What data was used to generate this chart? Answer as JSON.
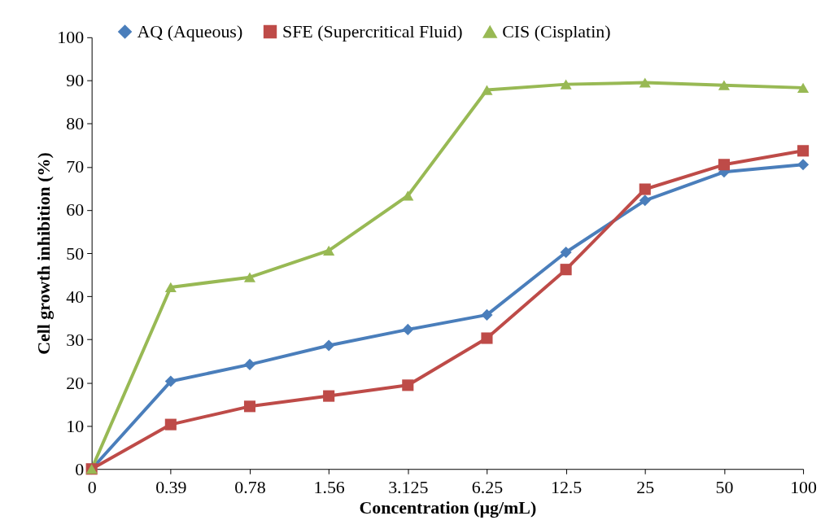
{
  "chart_data": {
    "type": "line",
    "xlabel": "Concentration (µg/mL)",
    "ylabel": "Cell growth inhibition (%)",
    "categories": [
      "0",
      "0.39",
      "0.78",
      "1.56",
      "3.125",
      "6.25",
      "12.5",
      "25",
      "50",
      "100"
    ],
    "ylim": [
      0,
      100
    ],
    "yticks": [
      0,
      10,
      20,
      30,
      40,
      50,
      60,
      70,
      80,
      90,
      100
    ],
    "grid": false,
    "legend": "top",
    "line_style": "solid",
    "series": [
      {
        "name": "AQ (Aqueous)",
        "color": "#4a7ebb",
        "marker": "diamond",
        "values": [
          0,
          20.3,
          24.2,
          28.6,
          32.3,
          35.7,
          50.2,
          62.2,
          68.8,
          70.5
        ]
      },
      {
        "name": "SFE (Supercritical Fluid)",
        "color": "#be4b48",
        "marker": "square",
        "values": [
          0,
          10.3,
          14.5,
          16.9,
          19.4,
          30.3,
          46.2,
          64.8,
          70.5,
          73.7
        ]
      },
      {
        "name": "CIS (Cisplatin)",
        "color": "#98b954",
        "marker": "triangle",
        "values": [
          0,
          42.1,
          44.4,
          50.6,
          63.3,
          87.8,
          89.1,
          89.5,
          88.9,
          88.3
        ]
      }
    ]
  }
}
